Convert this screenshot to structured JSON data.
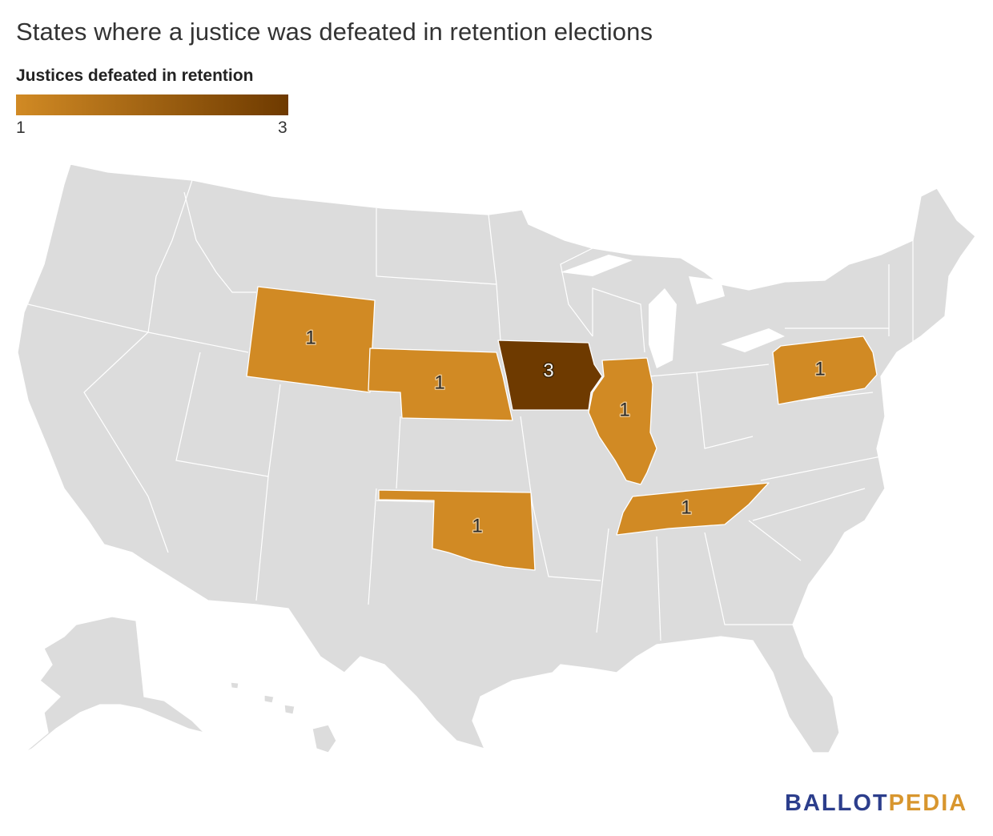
{
  "title": "States where a justice was defeated in retention elections",
  "legend": {
    "title": "Justices defeated in retention",
    "min_label": "1",
    "max_label": "3",
    "color_low": "#d18a24",
    "color_high": "#6e3a00"
  },
  "colors": {
    "base_state": "#dcdcdc",
    "label_light": "#f2f2f2",
    "label_halo_dark": "#3a2200",
    "label_dark_text": "#2b2b2b",
    "label_halo_light": "#e8c48e"
  },
  "states": [
    {
      "name": "Wyoming",
      "value": 1,
      "label": "1"
    },
    {
      "name": "Nebraska",
      "value": 1,
      "label": "1"
    },
    {
      "name": "Iowa",
      "value": 3,
      "label": "3"
    },
    {
      "name": "Illinois",
      "value": 1,
      "label": "1"
    },
    {
      "name": "Oklahoma",
      "value": 1,
      "label": "1"
    },
    {
      "name": "Tennessee",
      "value": 1,
      "label": "1"
    },
    {
      "name": "Pennsylvania",
      "value": 1,
      "label": "1"
    }
  ],
  "brand": {
    "part1": "BALLOT",
    "part2": "PEDIA",
    "color1": "#2c3e8c",
    "color2": "#d8962e"
  }
}
